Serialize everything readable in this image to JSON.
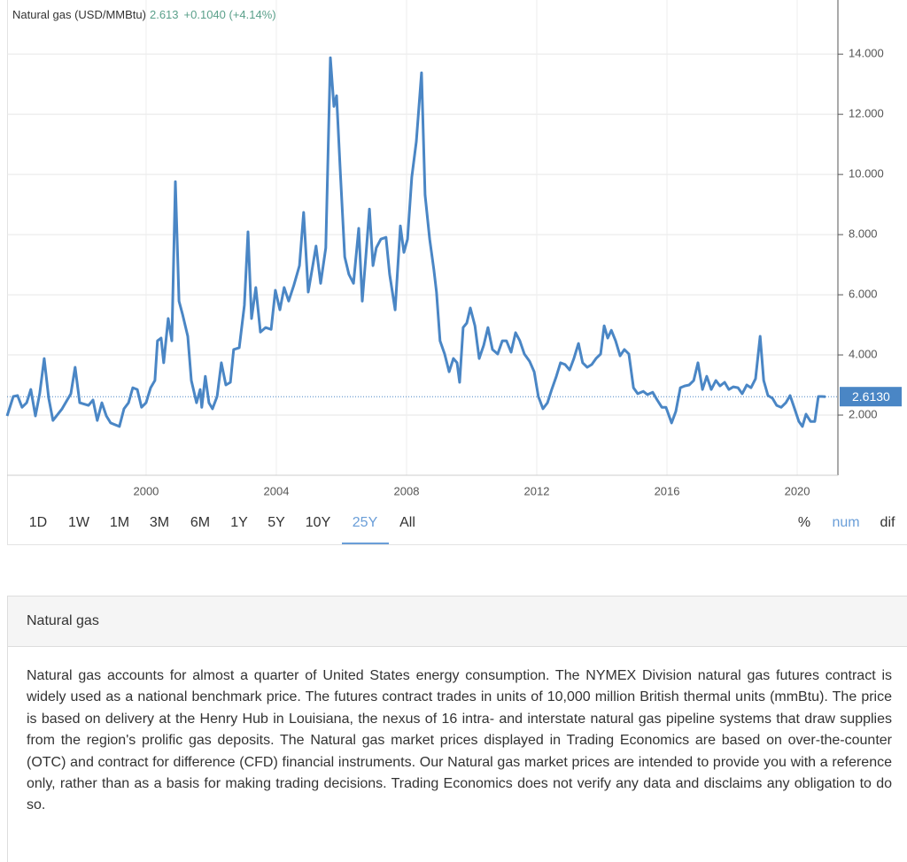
{
  "chart_data": {
    "type": "line",
    "title": "Natural gas (USD/MMBtu)",
    "last": "2.613",
    "change": "+0.1040 (+4.14%)",
    "x": [
      1995.73,
      1995.92,
      1996.05,
      1996.19,
      1996.33,
      1996.46,
      1996.6,
      1996.73,
      1996.87,
      1997.01,
      1997.14,
      1997.42,
      1997.69,
      1997.82,
      1997.96,
      1998.23,
      1998.37,
      1998.5,
      1998.64,
      1998.78,
      1998.91,
      1999.18,
      1999.32,
      1999.46,
      1999.59,
      1999.73,
      1999.86,
      2000.0,
      2000.14,
      2000.27,
      2000.35,
      2000.46,
      2000.54,
      2000.68,
      2000.79,
      2000.9,
      2001.01,
      2001.12,
      2001.28,
      2001.39,
      2001.55,
      2001.66,
      2001.71,
      2001.82,
      2001.93,
      2002.04,
      2002.18,
      2002.31,
      2002.45,
      2002.59,
      2002.69,
      2002.86,
      2003.02,
      2003.13,
      2003.24,
      2003.37,
      2003.51,
      2003.67,
      2003.84,
      2003.97,
      2004.11,
      2004.24,
      2004.38,
      2004.54,
      2004.71,
      2004.84,
      2004.98,
      2005.12,
      2005.22,
      2005.36,
      2005.52,
      2005.66,
      2005.77,
      2005.85,
      2005.96,
      2006.1,
      2006.23,
      2006.37,
      2006.53,
      2006.64,
      2006.75,
      2006.86,
      2006.97,
      2007.07,
      2007.21,
      2007.37,
      2007.48,
      2007.65,
      2007.81,
      2007.92,
      2008.03,
      2008.16,
      2008.3,
      2008.46,
      2008.57,
      2008.71,
      2008.84,
      2008.92,
      2009.03,
      2009.17,
      2009.31,
      2009.44,
      2009.55,
      2009.63,
      2009.74,
      2009.85,
      2009.96,
      2010.1,
      2010.23,
      2010.37,
      2010.5,
      2010.64,
      2010.8,
      2010.94,
      2011.07,
      2011.21,
      2011.35,
      2011.48,
      2011.62,
      2011.78,
      2011.92,
      2012.05,
      2012.19,
      2012.33,
      2012.46,
      2012.6,
      2012.73,
      2012.87,
      2013.01,
      2013.14,
      2013.28,
      2013.41,
      2013.55,
      2013.69,
      2013.82,
      2013.96,
      2014.07,
      2014.18,
      2014.29,
      2014.42,
      2014.56,
      2014.69,
      2014.83,
      2014.97,
      2015.1,
      2015.27,
      2015.4,
      2015.56,
      2015.7,
      2015.84,
      2015.97,
      2016.14,
      2016.27,
      2016.41,
      2016.54,
      2016.68,
      2016.82,
      2016.95,
      2017.09,
      2017.22,
      2017.36,
      2017.5,
      2017.63,
      2017.77,
      2017.9,
      2018.04,
      2018.18,
      2018.31,
      2018.45,
      2018.58,
      2018.72,
      2018.86,
      2018.97,
      2019.1,
      2019.24,
      2019.37,
      2019.51,
      2019.65,
      2019.78,
      2019.92,
      2020.05,
      2020.16,
      2020.27,
      2020.41,
      2020.54,
      2020.65,
      2020.76,
      2020.87
    ],
    "series": [
      {
        "color": "#4a86c5",
        "values": [
          1.97,
          2.62,
          2.65,
          2.26,
          2.41,
          2.85,
          1.97,
          2.71,
          3.88,
          2.56,
          1.82,
          2.21,
          2.71,
          3.59,
          2.41,
          2.32,
          2.5,
          1.82,
          2.41,
          1.97,
          1.74,
          1.62,
          2.21,
          2.41,
          2.91,
          2.85,
          2.26,
          2.41,
          2.91,
          3.15,
          4.47,
          4.56,
          3.74,
          5.21,
          4.47,
          9.76,
          5.79,
          5.35,
          4.62,
          3.15,
          2.41,
          2.85,
          2.26,
          3.29,
          2.41,
          2.21,
          2.62,
          3.74,
          3.0,
          3.09,
          4.18,
          4.24,
          5.65,
          8.09,
          5.21,
          6.24,
          4.76,
          4.91,
          4.85,
          6.15,
          5.5,
          6.24,
          5.79,
          6.32,
          6.97,
          8.74,
          6.09,
          6.97,
          7.62,
          6.38,
          7.56,
          13.88,
          12.26,
          12.62,
          10.21,
          7.26,
          6.68,
          6.38,
          8.21,
          5.79,
          7.26,
          8.85,
          6.97,
          7.56,
          7.85,
          7.91,
          6.68,
          5.5,
          8.29,
          7.41,
          7.85,
          9.91,
          11.09,
          13.38,
          9.32,
          7.85,
          6.82,
          6.09,
          4.47,
          4.03,
          3.44,
          3.88,
          3.74,
          3.09,
          4.91,
          5.06,
          5.56,
          4.97,
          3.88,
          4.32,
          4.91,
          4.18,
          4.03,
          4.47,
          4.47,
          4.09,
          4.74,
          4.47,
          4.03,
          3.79,
          3.44,
          2.62,
          2.21,
          2.41,
          2.85,
          3.29,
          3.74,
          3.68,
          3.5,
          3.88,
          4.38,
          3.74,
          3.59,
          3.68,
          3.88,
          4.03,
          4.97,
          4.56,
          4.82,
          4.47,
          3.97,
          4.18,
          4.03,
          2.91,
          2.71,
          2.79,
          2.68,
          2.76,
          2.5,
          2.26,
          2.26,
          1.74,
          2.12,
          2.91,
          2.97,
          3.0,
          3.15,
          3.74,
          2.85,
          3.29,
          2.85,
          3.15,
          2.97,
          3.09,
          2.85,
          2.94,
          2.91,
          2.71,
          3.0,
          2.91,
          3.21,
          4.62,
          3.15,
          2.65,
          2.56,
          2.32,
          2.26,
          2.41,
          2.65,
          2.21,
          1.79,
          1.62,
          2.03,
          1.79,
          1.79,
          2.62,
          2.62,
          2.613
        ]
      }
    ],
    "xlim": [
      1995.73,
      2021.25
    ],
    "xticks": [
      2000,
      2004,
      2008,
      2012,
      2016,
      2020
    ],
    "ylim": [
      0,
      15.8
    ],
    "yticks": [
      {
        "value": 2,
        "label": "2.000"
      },
      {
        "value": 4,
        "label": "4.000"
      },
      {
        "value": 6,
        "label": "6.000"
      },
      {
        "value": 8,
        "label": "8.000"
      },
      {
        "value": 10,
        "label": "10.000"
      },
      {
        "value": 12,
        "label": "12.000"
      },
      {
        "value": 14,
        "label": "14.000"
      }
    ],
    "current": {
      "value": 2.613,
      "label": "2.6130"
    },
    "grid": true
  },
  "range_buttons": [
    {
      "label": "1D"
    },
    {
      "label": "1W"
    },
    {
      "label": "1M"
    },
    {
      "label": "3M"
    },
    {
      "label": "6M"
    },
    {
      "label": "1Y"
    },
    {
      "label": "5Y"
    },
    {
      "label": "10Y"
    },
    {
      "label": "25Y",
      "active": true
    },
    {
      "label": "All"
    }
  ],
  "mode_buttons": [
    {
      "label": "%"
    },
    {
      "label": "num",
      "active": true
    },
    {
      "label": "dif"
    }
  ],
  "panel": {
    "title": "Natural gas",
    "text": "Natural gas accounts for almost a quarter of United States energy consumption. The NYMEX Division natural gas futures contract is widely used as a national benchmark price. The futures contract trades in units of 10,000 million British thermal units (mmBtu). The price is based on delivery at the Henry Hub in Louisiana, the nexus of 16 intra- and interstate natural gas pipeline systems that draw supplies from the region's prolific gas deposits. The Natural gas market prices displayed in Trading Economics are based on over-the-counter (OTC) and contract for difference (CFD) financial instruments. Our Natural gas market prices are intended to provide you with a reference only, rather than as a basis for making trading decisions. Trading Economics does not verify any data and disclaims any obligation to do so."
  }
}
